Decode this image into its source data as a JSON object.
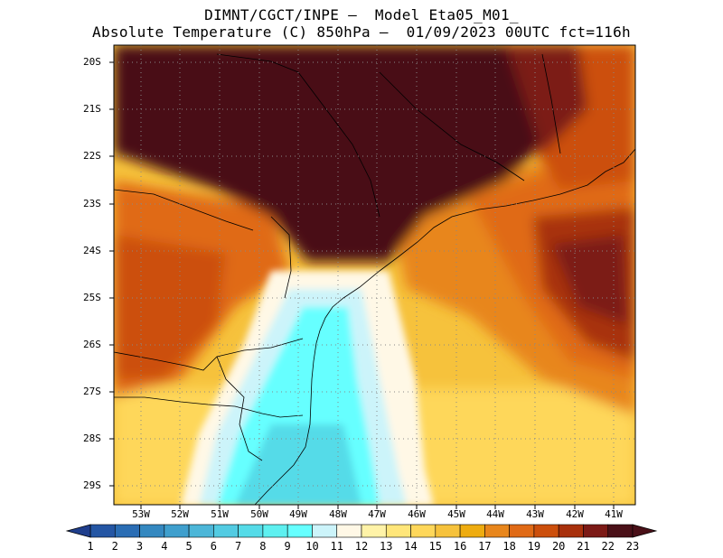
{
  "title": {
    "line1": "DIMNT/CGCT/INPE –  Model Eta05_M01_",
    "line2": "Absolute Temperature (C) 850hPa –  01/09/2023 00UTC fct=116h"
  },
  "map": {
    "lat_labels": [
      "20S",
      "21S",
      "22S",
      "23S",
      "24S",
      "25S",
      "26S",
      "27S",
      "28S",
      "29S"
    ],
    "lon_labels": [
      "53W",
      "52W",
      "51W",
      "50W",
      "49W",
      "48W",
      "47W",
      "46W",
      "45W",
      "44W",
      "43W",
      "42W",
      "41W"
    ],
    "field": "temperature 850hPa",
    "grid_lines": "dotted"
  },
  "colorbar": {
    "labels": [
      "1",
      "2",
      "3",
      "4",
      "5",
      "6",
      "7",
      "8",
      "9",
      "10",
      "11",
      "12",
      "13",
      "14",
      "15",
      "16",
      "17",
      "18",
      "19",
      "20",
      "21",
      "22",
      "23"
    ],
    "colors": [
      "#1f3e8c",
      "#2456a4",
      "#2a6db4",
      "#3488c0",
      "#3f9fcd",
      "#4cb6d8",
      "#52cbe2",
      "#55dbe8",
      "#5ef0f0",
      "#66ffff",
      "#ccf4fa",
      "#fff8e6",
      "#fff3a8",
      "#ffe67a",
      "#fed75a",
      "#f6c23c",
      "#eeac10",
      "#e8861c",
      "#e06a16",
      "#cc4f0c",
      "#a8300c",
      "#7c1a16",
      "#4a1018"
    ]
  }
}
